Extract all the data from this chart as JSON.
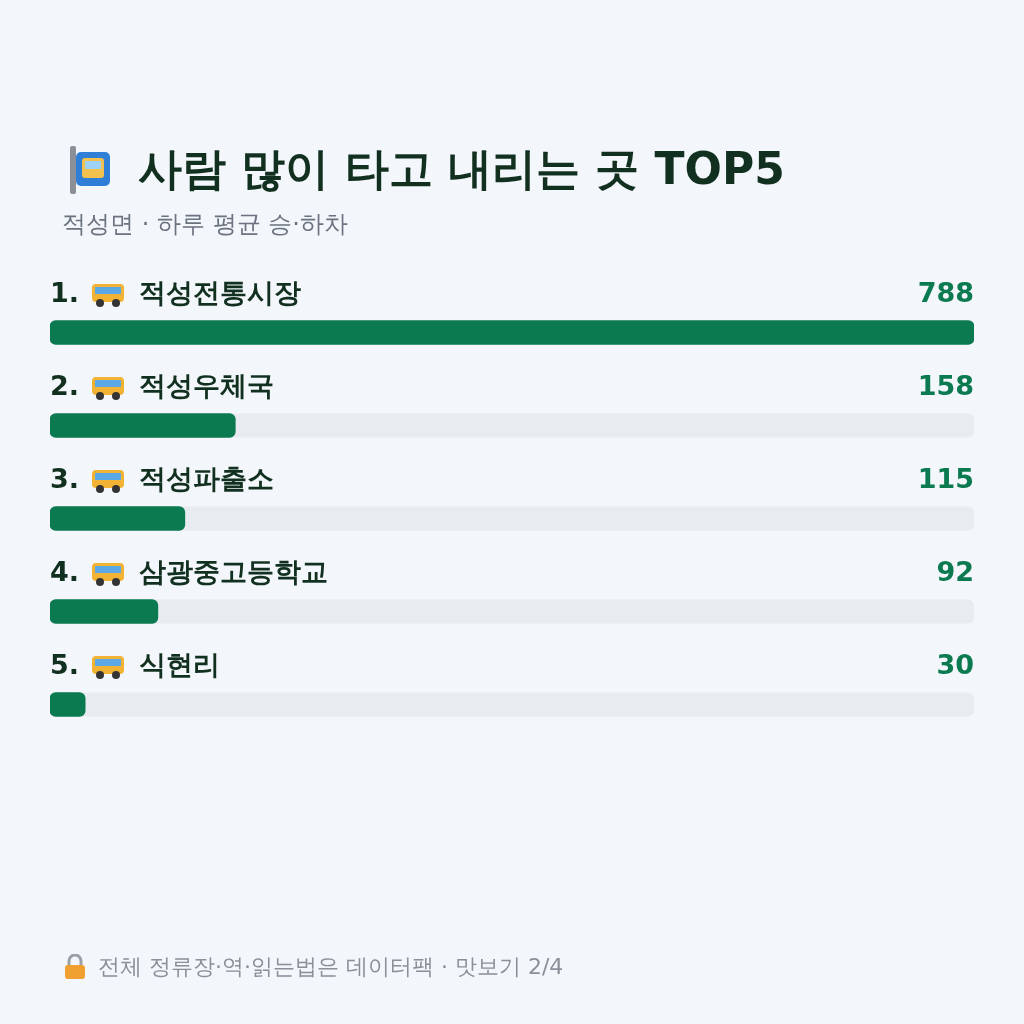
{
  "chart_data": {
    "type": "bar",
    "orientation": "horizontal",
    "title": "사람 많이 타고 내리는 곳 TOP5",
    "subtitle": "적성면 · 하루 평균 승·하차",
    "categories": [
      "1. 적성전통시장",
      "2. 적성우체국",
      "3. 적성파출소",
      "4. 삼광중고등학교",
      "5. 식현리"
    ],
    "values": [
      788,
      158,
      115,
      92,
      30
    ],
    "color": "#0b7a50",
    "data_labels": true,
    "legend": false,
    "annotations": [
      "전체 정류장·역·읽는법은 데이터팩 · 맛보기 2/4"
    ]
  }
}
